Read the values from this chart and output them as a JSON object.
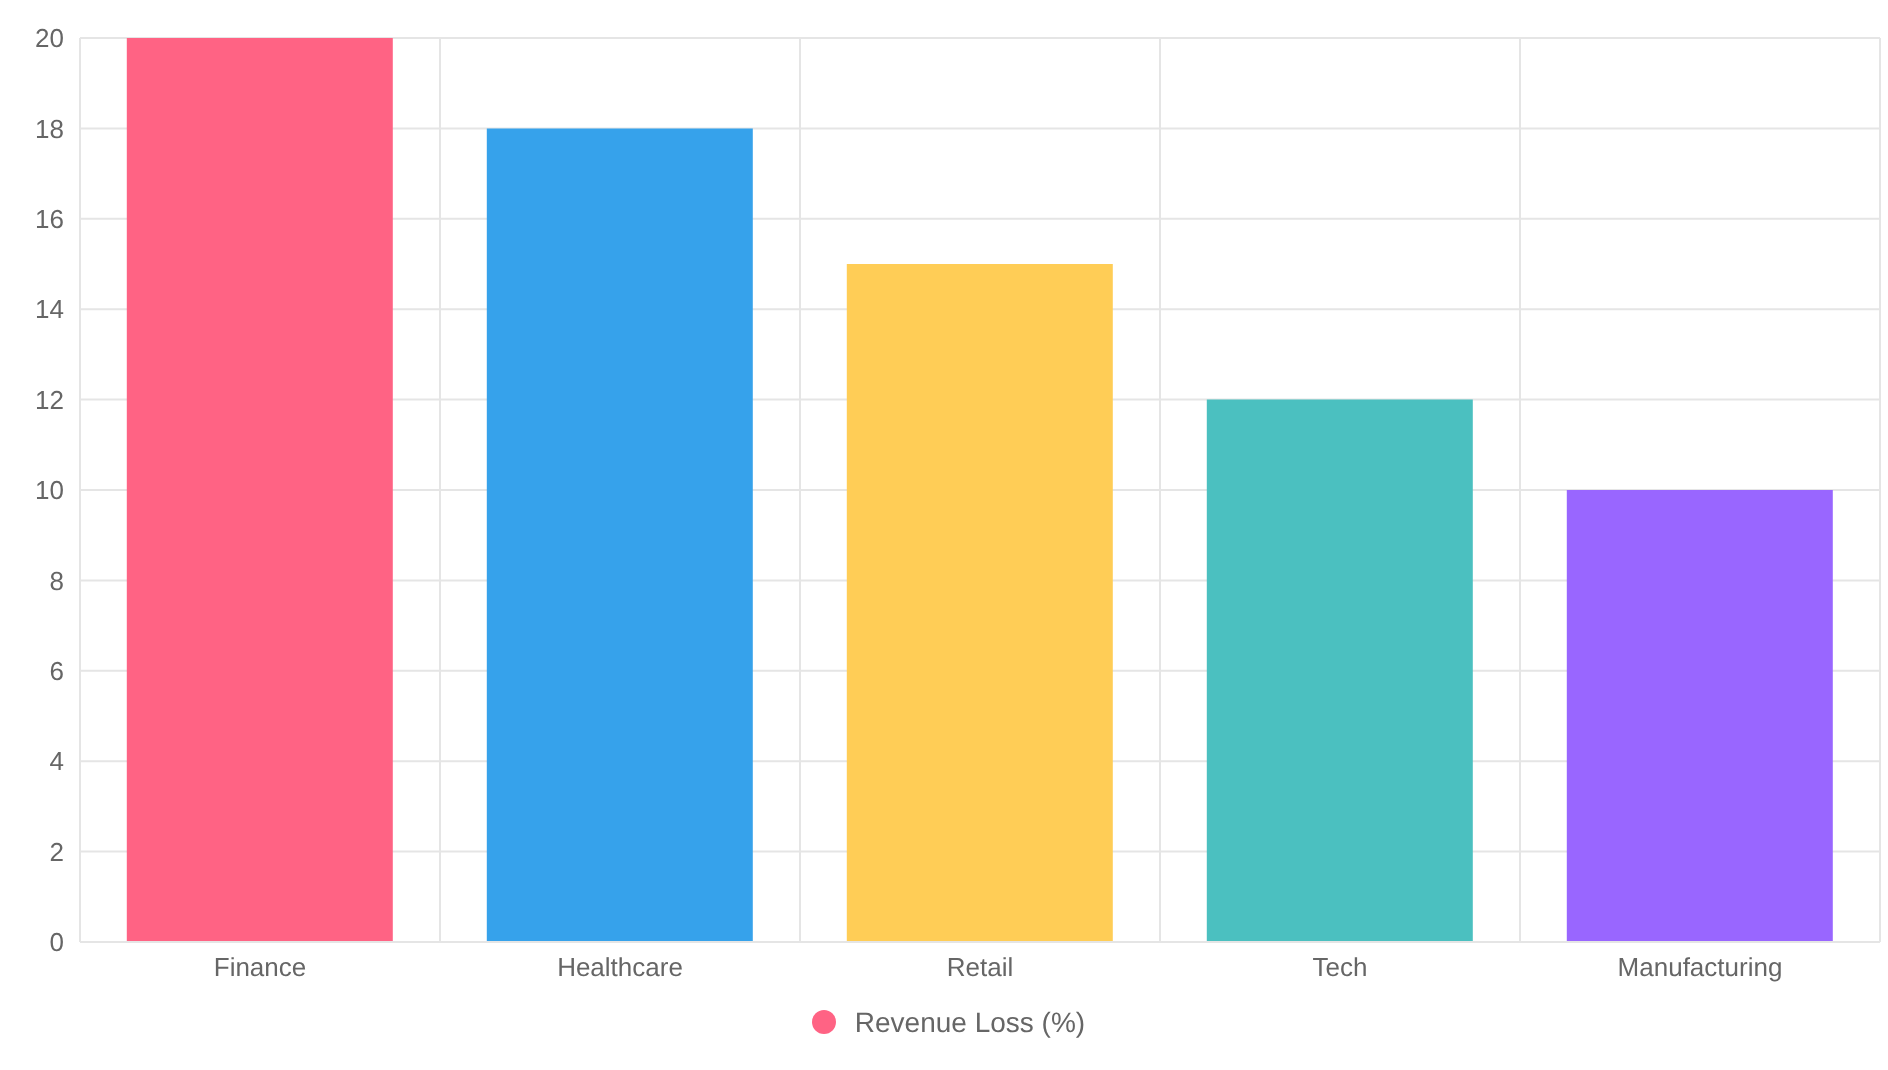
{
  "chart_data": {
    "type": "bar",
    "categories": [
      "Finance",
      "Healthcare",
      "Retail",
      "Tech",
      "Manufacturing"
    ],
    "series": [
      {
        "name": "Revenue Loss (%)",
        "colors": [
          "#ff6384",
          "#36a2eb",
          "#ffcd56",
          "#4bc0c0",
          "#9966ff"
        ],
        "values": [
          20,
          18,
          15,
          12,
          10
        ]
      }
    ],
    "ylim": [
      0,
      20
    ],
    "yticks": [
      0,
      2,
      4,
      6,
      8,
      10,
      12,
      14,
      16,
      18,
      20
    ],
    "grid": true,
    "legend": "bottom"
  }
}
